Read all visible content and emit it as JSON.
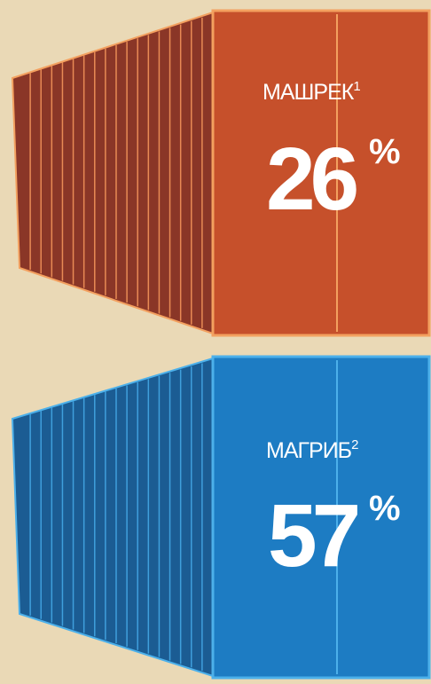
{
  "items": [
    {
      "label": "МАШРЕК",
      "note": "1",
      "value": 26,
      "unit": "%"
    },
    {
      "label": "МАГРИБ",
      "note": "2",
      "value": 57,
      "unit": "%"
    }
  ]
}
